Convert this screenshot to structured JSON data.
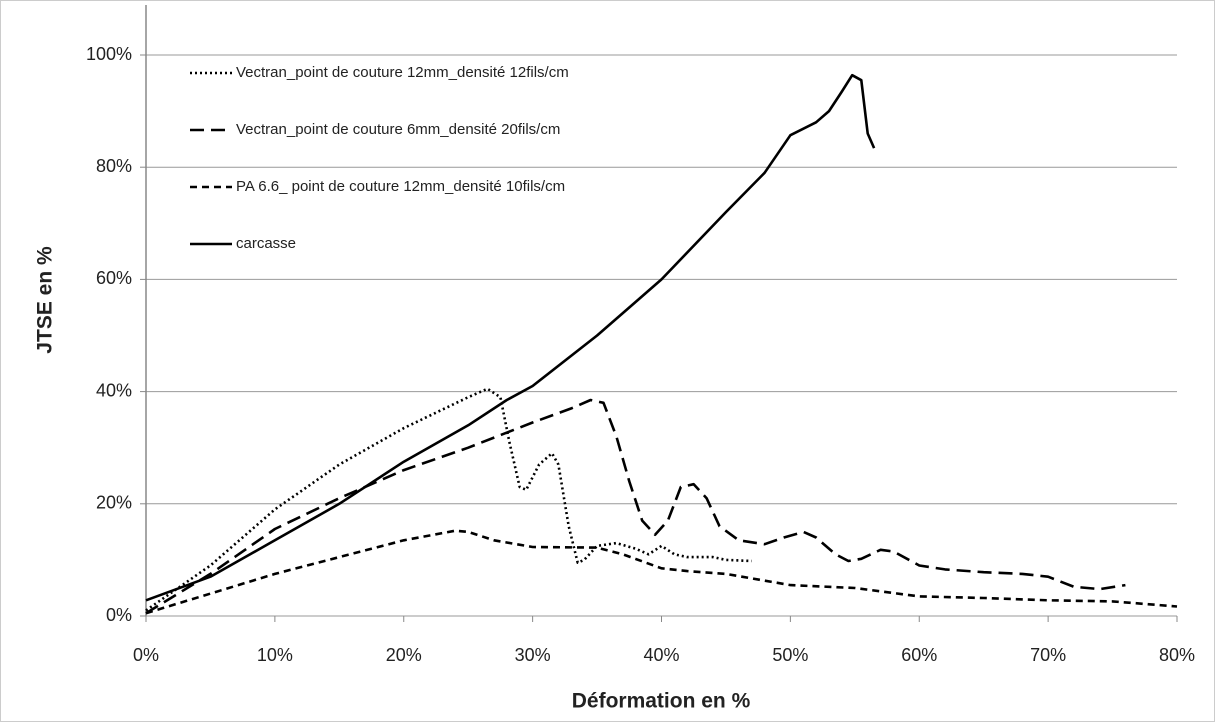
{
  "chart_data": {
    "type": "line",
    "x_label": "Déformation en %",
    "y_label": "JTSE en %",
    "xlim": [
      0,
      80
    ],
    "ylim": [
      0,
      100
    ],
    "xticks": [
      {
        "value": 0,
        "label": "0%"
      },
      {
        "value": 10,
        "label": "10%"
      },
      {
        "value": 20,
        "label": "20%"
      },
      {
        "value": 30,
        "label": "30%"
      },
      {
        "value": 40,
        "label": "40%"
      },
      {
        "value": 50,
        "label": "50%"
      },
      {
        "value": 60,
        "label": "60%"
      },
      {
        "value": 70,
        "label": "70%"
      },
      {
        "value": 80,
        "label": "80%"
      }
    ],
    "yticks": [
      {
        "value": 0,
        "label": "0%"
      },
      {
        "value": 20,
        "label": "20%"
      },
      {
        "value": 40,
        "label": "40%"
      },
      {
        "value": 60,
        "label": "60%"
      },
      {
        "value": 80,
        "label": "80%"
      },
      {
        "value": 100,
        "label": "100%"
      }
    ],
    "grid": true,
    "legend": "top-left",
    "series": [
      {
        "name": "Vectran_point de couture 12mm_densité 12fils/cm",
        "color": "#000000",
        "dash": "dotted",
        "x": [
          0,
          5,
          10,
          15,
          20,
          25,
          26.5,
          27.5,
          28.2,
          29,
          29.5,
          30.5,
          31.5,
          32,
          32.8,
          33.5,
          34,
          35,
          36.5,
          38,
          39,
          40,
          41,
          42,
          44,
          45,
          47
        ],
        "values": [
          1,
          9,
          19,
          27,
          33.5,
          39,
          40.5,
          39,
          31,
          23,
          22.5,
          27,
          29,
          27,
          16,
          9.5,
          10,
          12.5,
          13,
          12,
          11,
          12.5,
          11,
          10.5,
          10.5,
          10,
          9.8
        ]
      },
      {
        "name": "Vectran_point de couture 6mm_densité 20fils/cm",
        "color": "#000000",
        "dash": "long-dash",
        "x": [
          0,
          5,
          10,
          15,
          20,
          25,
          30,
          33,
          34.5,
          35.5,
          36.5,
          37.5,
          38.5,
          39.5,
          40.5,
          41.5,
          42.5,
          43.5,
          44.5,
          46,
          48,
          49.5,
          51,
          52,
          53.5,
          54.5,
          55.5,
          57,
          58,
          60,
          62,
          65,
          68,
          70,
          72,
          74,
          76
        ],
        "values": [
          0.5,
          7.5,
          15.5,
          21,
          26,
          30,
          34.5,
          37,
          38.5,
          38,
          32,
          24,
          17,
          14.5,
          17,
          23,
          23.5,
          21,
          16,
          13.5,
          12.8,
          14,
          15,
          14,
          11,
          9.8,
          10.2,
          11.8,
          11.5,
          9,
          8.3,
          7.8,
          7.5,
          7,
          5.2,
          4.8,
          5.5
        ]
      },
      {
        "name": "PA 6.6_ point de couture 12mm_densité 10fils/cm",
        "color": "#000000",
        "dash": "short-dash",
        "x": [
          0,
          5,
          10,
          15,
          20,
          24,
          25,
          27,
          30,
          35,
          37,
          40,
          42,
          45,
          50,
          55,
          60,
          65,
          70,
          75,
          80
        ],
        "values": [
          0.5,
          4,
          7.5,
          10.5,
          13.5,
          15.2,
          15,
          13.5,
          12.3,
          12.2,
          11,
          8.5,
          8,
          7.5,
          5.5,
          5,
          3.5,
          3.2,
          2.8,
          2.6,
          1.7
        ]
      },
      {
        "name": "carcasse",
        "color": "#000000",
        "dash": "solid",
        "x": [
          0,
          5,
          10,
          15,
          20,
          25,
          28,
          30,
          35,
          40,
          45,
          48,
          50,
          52,
          53,
          54,
          54.8,
          55.5,
          56,
          56.5
        ],
        "values": [
          2.8,
          7,
          13.5,
          20,
          27.5,
          34,
          38.5,
          41,
          50,
          60,
          72,
          79,
          85.7,
          88,
          90,
          93.5,
          96.4,
          95.5,
          86,
          83.4
        ]
      }
    ]
  }
}
